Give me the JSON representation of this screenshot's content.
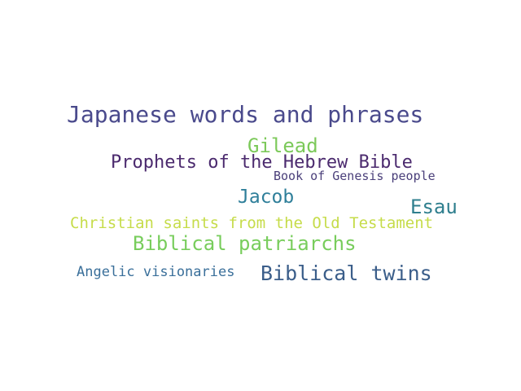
{
  "word_cloud": {
    "words": [
      {
        "text": "Japanese words and phrases",
        "color": "#4a4a8c"
      },
      {
        "text": "Gilead",
        "color": "#7cc95a"
      },
      {
        "text": "Prophets of the Hebrew Bible",
        "color": "#4b2a6e"
      },
      {
        "text": "Book of Genesis people",
        "color": "#4a3f7a"
      },
      {
        "text": "Jacob",
        "color": "#2f7f9a"
      },
      {
        "text": "Esau",
        "color": "#2f7f8e"
      },
      {
        "text": "Christian saints from the Old Testament",
        "color": "#c6dc4a"
      },
      {
        "text": "Biblical patriarchs",
        "color": "#78cd5c"
      },
      {
        "text": "Angelic visionaries",
        "color": "#3a6f9a"
      },
      {
        "text": "Biblical twins",
        "color": "#3b5e8a"
      }
    ]
  }
}
